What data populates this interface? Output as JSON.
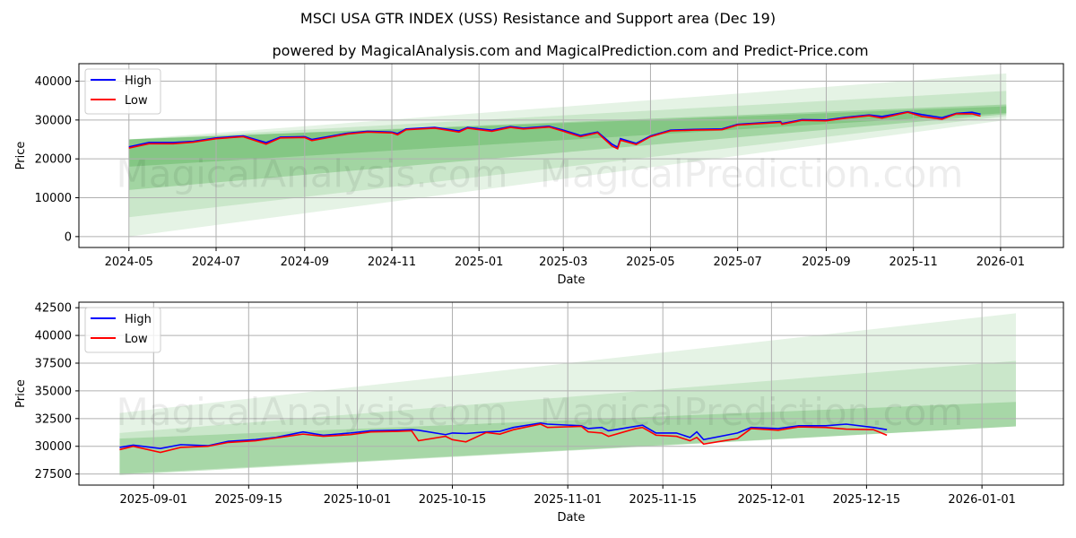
{
  "title": "MSCI USA GTR INDEX (USS) Resistance and Support area (Dec 19)",
  "subtitle": "powered by MagicalAnalysis.com and MagicalPrediction.com and Predict-Price.com",
  "watermarks": [
    "MagicalAnalysis.com",
    "MagicalPrediction.com"
  ],
  "colors": {
    "high": "#0000ff",
    "low": "#ff0000",
    "band": "#2ca02c"
  },
  "chart_data": [
    {
      "type": "line",
      "title": "",
      "xlabel": "Date",
      "ylabel": "Price",
      "ylim": [
        -2800,
        44500
      ],
      "xlim": [
        "2024-03-27",
        "2026-02-14"
      ],
      "yticks": [
        0,
        10000,
        20000,
        30000,
        40000
      ],
      "xticks": [
        "2024-05",
        "2024-07",
        "2024-09",
        "2024-11",
        "2025-01",
        "2025-03",
        "2025-05",
        "2025-07",
        "2025-09",
        "2025-11",
        "2026-01"
      ],
      "legend": [
        "High",
        "Low"
      ],
      "legend_position": "upper-left",
      "grid": true,
      "bands": {
        "start": "2024-05-01",
        "end": "2026-01-05",
        "ranges": [
          [
            0,
            25000,
            30000,
            42000,
            0.12
          ],
          [
            5000,
            25000,
            31000,
            37500,
            0.14
          ],
          [
            12000,
            25000,
            31500,
            34000,
            0.25
          ],
          [
            18000,
            25000,
            31800,
            33500,
            0.25
          ]
        ]
      },
      "series": [
        [
          "2024-05-01",
          23100,
          22800
        ],
        [
          "2024-05-15",
          24200,
          23900
        ],
        [
          "2024-06-01",
          24200,
          23900
        ],
        [
          "2024-06-15",
          24500,
          24300
        ],
        [
          "2024-07-01",
          25400,
          25200
        ],
        [
          "2024-07-20",
          25900,
          25700
        ],
        [
          "2024-08-05",
          24200,
          23800
        ],
        [
          "2024-08-15",
          25600,
          25400
        ],
        [
          "2024-09-01",
          25700,
          25500
        ],
        [
          "2024-09-06",
          25000,
          24700
        ],
        [
          "2024-10-01",
          26600,
          26400
        ],
        [
          "2024-10-15",
          27100,
          26900
        ],
        [
          "2024-11-01",
          26900,
          26700
        ],
        [
          "2024-11-05",
          26500,
          26200
        ],
        [
          "2024-11-11",
          27700,
          27500
        ],
        [
          "2024-12-01",
          28100,
          27900
        ],
        [
          "2024-12-18",
          27200,
          26900
        ],
        [
          "2024-12-24",
          28100,
          27900
        ],
        [
          "2025-01-10",
          27400,
          27100
        ],
        [
          "2025-01-23",
          28300,
          28100
        ],
        [
          "2025-02-01",
          27900,
          27700
        ],
        [
          "2025-02-19",
          28400,
          28200
        ],
        [
          "2025-03-01",
          27400,
          27100
        ],
        [
          "2025-03-13",
          26000,
          25700
        ],
        [
          "2025-03-25",
          26900,
          26700
        ],
        [
          "2025-04-04",
          23800,
          23300
        ],
        [
          "2025-04-08",
          23000,
          22600
        ],
        [
          "2025-04-10",
          25200,
          24800
        ],
        [
          "2025-04-21",
          24000,
          23700
        ],
        [
          "2025-05-01",
          25900,
          25700
        ],
        [
          "2025-05-15",
          27400,
          27200
        ],
        [
          "2025-06-01",
          27600,
          27400
        ],
        [
          "2025-06-20",
          27700,
          27500
        ],
        [
          "2025-07-01",
          28900,
          28700
        ],
        [
          "2025-07-31",
          29600,
          29400
        ],
        [
          "2025-08-01",
          29100,
          28900
        ],
        [
          "2025-08-15",
          30100,
          29900
        ],
        [
          "2025-09-01",
          30000,
          29800
        ],
        [
          "2025-09-15",
          30700,
          30500
        ],
        [
          "2025-10-01",
          31300,
          31100
        ],
        [
          "2025-10-10",
          30900,
          30500
        ],
        [
          "2025-10-28",
          32100,
          32000
        ],
        [
          "2025-11-07",
          31400,
          30900
        ],
        [
          "2025-11-21",
          30600,
          30200
        ],
        [
          "2025-12-01",
          31700,
          31600
        ],
        [
          "2025-12-12",
          32000,
          31600
        ],
        [
          "2025-12-18",
          31500,
          31000
        ]
      ]
    },
    {
      "type": "line",
      "title": "",
      "xlabel": "Date",
      "ylabel": "Price",
      "ylim": [
        26500,
        43000
      ],
      "xlim": [
        "2025-08-21",
        "2026-01-13"
      ],
      "yticks": [
        27500,
        30000,
        32500,
        35000,
        37500,
        40000,
        42500
      ],
      "xticks": [
        "2025-09-01",
        "2025-09-15",
        "2025-10-01",
        "2025-10-15",
        "2025-11-01",
        "2025-11-15",
        "2025-12-01",
        "2025-12-15",
        "2026-01-01"
      ],
      "legend": [
        "High",
        "Low"
      ],
      "legend_position": "upper-left",
      "grid": true,
      "bands": {
        "start": "2025-08-27",
        "end": "2026-01-06",
        "ranges": [
          [
            27400,
            33000,
            31800,
            42000,
            0.12
          ],
          [
            27400,
            31200,
            31800,
            37700,
            0.14
          ],
          [
            27500,
            30700,
            31800,
            34000,
            0.22
          ]
        ]
      },
      "series": [
        [
          "2025-08-27",
          29900,
          29700
        ],
        [
          "2025-08-29",
          30100,
          30000
        ],
        [
          "2025-09-02",
          29800,
          29450
        ],
        [
          "2025-09-05",
          30150,
          29900
        ],
        [
          "2025-09-09",
          30050,
          30000
        ],
        [
          "2025-09-12",
          30450,
          30350
        ],
        [
          "2025-09-16",
          30600,
          30500
        ],
        [
          "2025-09-19",
          30800,
          30750
        ],
        [
          "2025-09-23",
          31300,
          31100
        ],
        [
          "2025-09-26",
          31000,
          30900
        ],
        [
          "2025-09-30",
          31200,
          31050
        ],
        [
          "2025-10-03",
          31400,
          31300
        ],
        [
          "2025-10-07",
          31450,
          31350
        ],
        [
          "2025-10-09",
          31500,
          31400
        ],
        [
          "2025-10-10",
          31450,
          30500
        ],
        [
          "2025-10-14",
          31050,
          30900
        ],
        [
          "2025-10-15",
          31200,
          30600
        ],
        [
          "2025-10-17",
          31150,
          30400
        ],
        [
          "2025-10-20",
          31300,
          31250
        ],
        [
          "2025-10-22",
          31350,
          31100
        ],
        [
          "2025-10-24",
          31700,
          31500
        ],
        [
          "2025-10-28",
          32100,
          32000
        ],
        [
          "2025-10-29",
          32000,
          31700
        ],
        [
          "2025-11-03",
          31850,
          31800
        ],
        [
          "2025-11-04",
          31600,
          31300
        ],
        [
          "2025-11-06",
          31700,
          31200
        ],
        [
          "2025-11-07",
          31400,
          30900
        ],
        [
          "2025-11-11",
          31800,
          31600
        ],
        [
          "2025-11-12",
          31900,
          31700
        ],
        [
          "2025-11-14",
          31200,
          31000
        ],
        [
          "2025-11-17",
          31200,
          30900
        ],
        [
          "2025-11-19",
          30800,
          30500
        ],
        [
          "2025-11-20",
          31300,
          30800
        ],
        [
          "2025-11-21",
          30600,
          30200
        ],
        [
          "2025-11-26",
          31200,
          30700
        ],
        [
          "2025-11-28",
          31700,
          31600
        ],
        [
          "2025-12-02",
          31600,
          31450
        ],
        [
          "2025-12-05",
          31850,
          31750
        ],
        [
          "2025-12-09",
          31850,
          31700
        ],
        [
          "2025-12-12",
          32000,
          31550
        ],
        [
          "2025-12-16",
          31700,
          31500
        ],
        [
          "2025-12-18",
          31500,
          31000
        ]
      ]
    }
  ]
}
